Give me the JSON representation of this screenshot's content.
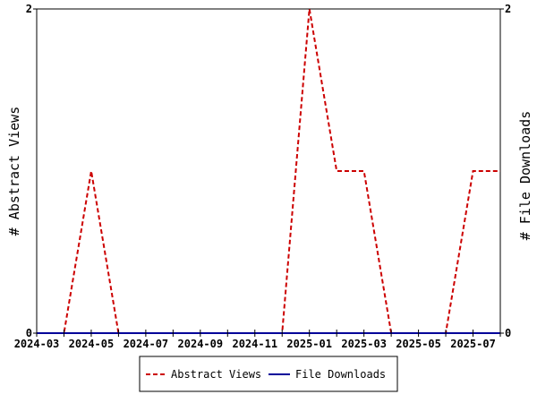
{
  "chart_data": {
    "type": "line",
    "x": [
      "2024-03",
      "2024-04",
      "2024-05",
      "2024-06",
      "2024-07",
      "2024-08",
      "2024-09",
      "2024-10",
      "2024-11",
      "2024-12",
      "2025-01",
      "2025-02",
      "2025-03",
      "2025-04",
      "2025-05",
      "2025-06",
      "2025-07",
      "2025-08"
    ],
    "x_tick_labels": [
      "2024-03",
      "2024-05",
      "2024-07",
      "2024-09",
      "2024-11",
      "2025-01",
      "2025-03",
      "2025-05",
      "2025-07"
    ],
    "series": [
      {
        "name": "Abstract Views",
        "axis": "left",
        "color": "#cc0000",
        "style": "dashed",
        "values": [
          0,
          0,
          1,
          0,
          0,
          0,
          0,
          0,
          0,
          0,
          2,
          1,
          1,
          0,
          0,
          0,
          1,
          1
        ]
      },
      {
        "name": "File Downloads",
        "axis": "right",
        "color": "#000099",
        "style": "solid",
        "values": [
          0,
          0,
          0,
          0,
          0,
          0,
          0,
          0,
          0,
          0,
          0,
          0,
          0,
          0,
          0,
          0,
          0,
          0
        ]
      }
    ],
    "ylabel_left": "# Abstract Views",
    "ylabel_right": "# File Downloads",
    "ylim_left": [
      0,
      2
    ],
    "ylim_right": [
      0,
      2
    ],
    "y_tick_labels_left": [
      "0",
      "2"
    ],
    "y_tick_labels_right": [
      "0",
      "2"
    ],
    "grid": false,
    "legend_position": "bottom-center"
  }
}
